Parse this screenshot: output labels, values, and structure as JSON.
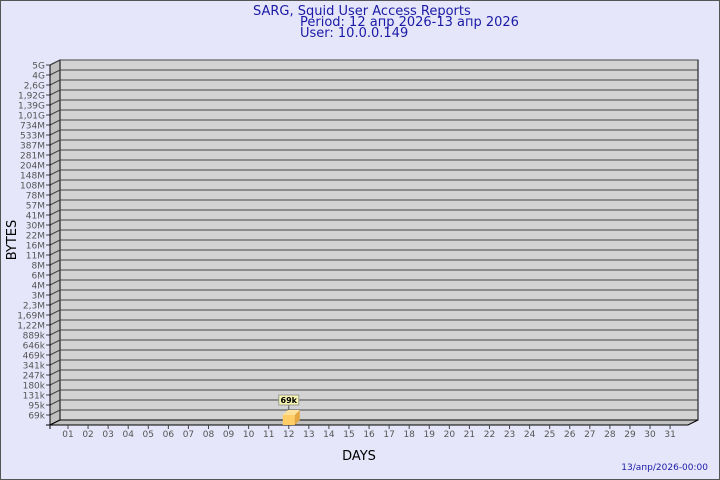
{
  "header": {
    "title": "SARG, Squid User Access Reports",
    "period": "Period: 12 апр 2026-13 апр 2026",
    "user": "User: 10.0.0.149"
  },
  "footer": {
    "timestamp": "13/апр/2026-00:00"
  },
  "chart_data": {
    "type": "bar",
    "xlabel": "DAYS",
    "ylabel": "BYTES",
    "y_scale": "log",
    "grid": true,
    "y_tick_labels": [
      "5G",
      "4G",
      "2,6G",
      "1,92G",
      "1,39G",
      "1,01G",
      "734M",
      "533M",
      "387M",
      "281M",
      "204M",
      "148M",
      "108M",
      "78M",
      "57M",
      "41M",
      "30M",
      "22M",
      "16M",
      "11M",
      "8M",
      "6M",
      "4M",
      "3M",
      "2,3M",
      "1,69M",
      "1,22M",
      "889k",
      "646k",
      "469k",
      "341k",
      "247k",
      "180k",
      "131k",
      "95k",
      "69k"
    ],
    "categories": [
      "01",
      "02",
      "03",
      "04",
      "05",
      "06",
      "07",
      "08",
      "09",
      "10",
      "11",
      "12",
      "13",
      "14",
      "15",
      "16",
      "17",
      "18",
      "19",
      "20",
      "21",
      "22",
      "23",
      "24",
      "25",
      "26",
      "27",
      "28",
      "29",
      "30",
      "31"
    ],
    "bars": [
      {
        "category": "12",
        "value": 69000,
        "label": "69k"
      }
    ],
    "colors": {
      "bar": "#ffcc66",
      "bar_side": "#e6a640",
      "plot": "#d3d3d3",
      "label_bg": "#f5f5b0",
      "title": "#1a1aa6"
    }
  }
}
